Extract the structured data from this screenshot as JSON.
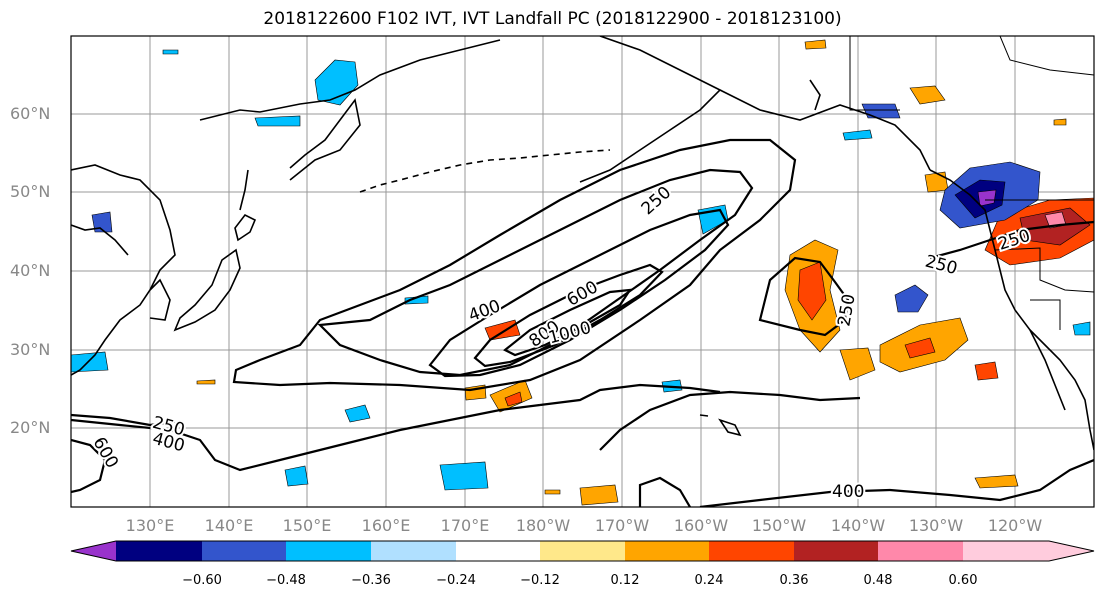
{
  "title": "2018122600 F102 IVT, IVT Landfall PC (2018122900 - 2018123100)",
  "lat_labels": [
    "60°N",
    "50°N",
    "40°N",
    "30°N",
    "20°N"
  ],
  "lon_labels": [
    "130°E",
    "140°E",
    "150°E",
    "160°E",
    "170°E",
    "180°W",
    "170°W",
    "160°W",
    "150°W",
    "140°W",
    "130°W",
    "120°W"
  ],
  "contour_labels": [
    "250",
    "400",
    "600",
    "800",
    "1000",
    "250",
    "400",
    "600",
    "250",
    "250",
    "250",
    "400"
  ],
  "colorbar": {
    "ticks": [
      "−0.60",
      "−0.48",
      "−0.36",
      "−0.24",
      "−0.12",
      "0.12",
      "0.24",
      "0.36",
      "0.48",
      "0.60"
    ],
    "colors": [
      "#9933cc",
      "#000080",
      "#3355cc",
      "#00bfff",
      "#b0e0ff",
      "#ffffff",
      "#ffe88a",
      "#ffa500",
      "#ff4500",
      "#b22222",
      "#ff88aa",
      "#ffccdd"
    ]
  },
  "colors": {
    "land": "#000000",
    "grid": "#999999",
    "ivt_contour": "#000000"
  }
}
